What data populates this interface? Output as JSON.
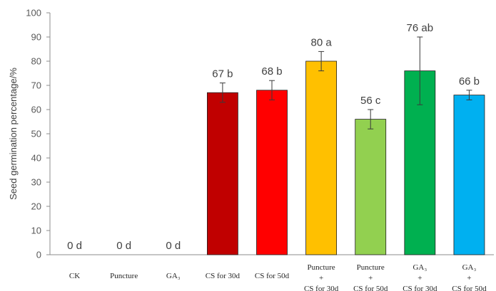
{
  "chart_data": {
    "type": "bar",
    "title": "",
    "xlabel": "",
    "ylabel": "Seed germination percentage/%",
    "ylim": [
      0,
      100
    ],
    "yticks": [
      "0",
      "10",
      "20",
      "30",
      "40",
      "50",
      "60",
      "70",
      "80",
      "90",
      "100"
    ],
    "grid": false,
    "categories": [
      [
        "CK"
      ],
      [
        "Puncture"
      ],
      [
        "GA₃"
      ],
      [
        "CS for 30d"
      ],
      [
        "CS for 50d"
      ],
      [
        "Puncture",
        "+",
        "CS for 30d"
      ],
      [
        "Puncture",
        "+",
        "CS for 50d"
      ],
      [
        "GA₃",
        "+",
        "CS for 30d"
      ],
      [
        "GA₃",
        "+",
        "CS for 50d"
      ]
    ],
    "values": [
      0,
      0,
      0,
      67,
      68,
      80,
      56,
      76,
      66
    ],
    "error": [
      0,
      0,
      0,
      4,
      4,
      4,
      4,
      14,
      2
    ],
    "labels": [
      "0 d",
      "0 d",
      "0 d",
      "67 b",
      "68 b",
      "80 a",
      "56 c",
      "76 ab",
      "66 b"
    ],
    "colors": [
      "#C00000",
      "#C00000",
      "#C00000",
      "#C00000",
      "#FF0000",
      "#FFC000",
      "#92D050",
      "#00B050",
      "#00B0F0"
    ]
  }
}
